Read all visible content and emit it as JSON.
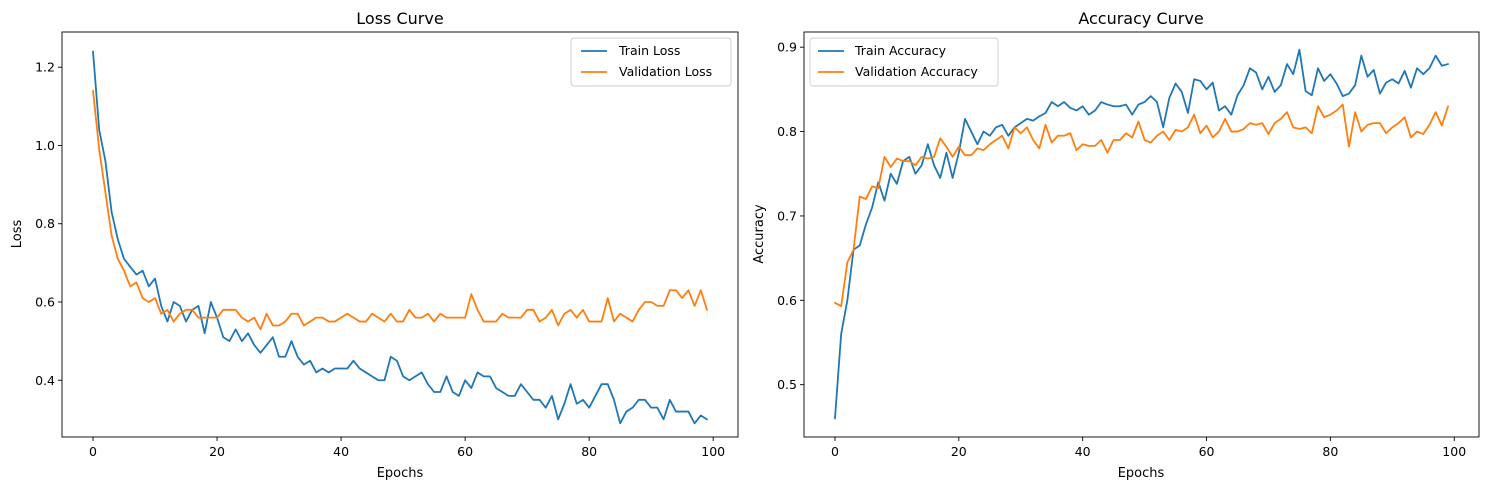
{
  "chart_data": [
    {
      "type": "line",
      "title": "Loss Curve",
      "xlabel": "Epochs",
      "ylabel": "Loss",
      "xlim": [
        -5,
        104
      ],
      "ylim": [
        0.255,
        1.29
      ],
      "xticks": [
        0,
        20,
        40,
        60,
        80,
        100
      ],
      "yticks": [
        0.4,
        0.6,
        0.8,
        1.0,
        1.2
      ],
      "legend": "top-right",
      "grid": false,
      "series": [
        {
          "name": "Train Loss",
          "color": "#1f77b4",
          "values": [
            1.24,
            1.04,
            0.96,
            0.83,
            0.76,
            0.71,
            0.69,
            0.67,
            0.68,
            0.64,
            0.66,
            0.59,
            0.55,
            0.6,
            0.59,
            0.55,
            0.58,
            0.59,
            0.52,
            0.6,
            0.56,
            0.51,
            0.5,
            0.53,
            0.5,
            0.52,
            0.49,
            0.47,
            0.49,
            0.51,
            0.46,
            0.46,
            0.5,
            0.46,
            0.44,
            0.45,
            0.42,
            0.43,
            0.42,
            0.43,
            0.43,
            0.43,
            0.45,
            0.43,
            0.42,
            0.41,
            0.4,
            0.4,
            0.46,
            0.45,
            0.41,
            0.4,
            0.41,
            0.42,
            0.39,
            0.37,
            0.37,
            0.41,
            0.37,
            0.36,
            0.4,
            0.38,
            0.42,
            0.41,
            0.41,
            0.38,
            0.37,
            0.36,
            0.36,
            0.39,
            0.37,
            0.35,
            0.35,
            0.33,
            0.36,
            0.3,
            0.34,
            0.39,
            0.34,
            0.35,
            0.33,
            0.36,
            0.39,
            0.39,
            0.35,
            0.29,
            0.32,
            0.33,
            0.35,
            0.35,
            0.33,
            0.33,
            0.3,
            0.35,
            0.32,
            0.32,
            0.32,
            0.29,
            0.31,
            0.3
          ]
        },
        {
          "name": "Validation Loss",
          "color": "#ff7f0e",
          "values": [
            1.14,
            0.99,
            0.88,
            0.77,
            0.71,
            0.68,
            0.64,
            0.65,
            0.61,
            0.6,
            0.61,
            0.57,
            0.58,
            0.55,
            0.57,
            0.58,
            0.58,
            0.56,
            0.56,
            0.56,
            0.56,
            0.58,
            0.58,
            0.58,
            0.56,
            0.55,
            0.56,
            0.53,
            0.57,
            0.54,
            0.54,
            0.55,
            0.57,
            0.57,
            0.54,
            0.55,
            0.56,
            0.56,
            0.55,
            0.55,
            0.56,
            0.57,
            0.56,
            0.55,
            0.55,
            0.57,
            0.56,
            0.55,
            0.57,
            0.55,
            0.55,
            0.58,
            0.56,
            0.56,
            0.57,
            0.55,
            0.57,
            0.56,
            0.56,
            0.56,
            0.56,
            0.62,
            0.58,
            0.55,
            0.55,
            0.55,
            0.57,
            0.56,
            0.56,
            0.56,
            0.58,
            0.58,
            0.55,
            0.56,
            0.58,
            0.54,
            0.57,
            0.58,
            0.56,
            0.58,
            0.55,
            0.55,
            0.55,
            0.61,
            0.55,
            0.57,
            0.56,
            0.55,
            0.58,
            0.6,
            0.6,
            0.59,
            0.59,
            0.63,
            0.63,
            0.61,
            0.63,
            0.59,
            0.63,
            0.58
          ]
        }
      ]
    },
    {
      "type": "line",
      "title": "Accuracy Curve",
      "xlabel": "Epochs",
      "ylabel": "Accuracy",
      "xlim": [
        -5,
        104
      ],
      "ylim": [
        0.438,
        0.918
      ],
      "xticks": [
        0,
        20,
        40,
        60,
        80,
        100
      ],
      "yticks": [
        0.5,
        0.6,
        0.7,
        0.8,
        0.9
      ],
      "legend": "top-left",
      "grid": false,
      "series": [
        {
          "name": "Train Accuracy",
          "color": "#1f77b4",
          "values": [
            0.46,
            0.56,
            0.6,
            0.66,
            0.665,
            0.69,
            0.71,
            0.74,
            0.718,
            0.75,
            0.738,
            0.765,
            0.77,
            0.75,
            0.76,
            0.785,
            0.76,
            0.745,
            0.775,
            0.745,
            0.775,
            0.815,
            0.8,
            0.785,
            0.8,
            0.795,
            0.805,
            0.808,
            0.795,
            0.805,
            0.81,
            0.815,
            0.813,
            0.818,
            0.822,
            0.835,
            0.83,
            0.835,
            0.828,
            0.825,
            0.83,
            0.82,
            0.825,
            0.835,
            0.832,
            0.83,
            0.83,
            0.832,
            0.82,
            0.832,
            0.835,
            0.842,
            0.835,
            0.805,
            0.84,
            0.857,
            0.847,
            0.822,
            0.862,
            0.86,
            0.85,
            0.858,
            0.825,
            0.83,
            0.82,
            0.843,
            0.855,
            0.875,
            0.87,
            0.85,
            0.865,
            0.847,
            0.855,
            0.88,
            0.868,
            0.897,
            0.848,
            0.843,
            0.875,
            0.86,
            0.868,
            0.857,
            0.842,
            0.845,
            0.855,
            0.89,
            0.865,
            0.873,
            0.845,
            0.858,
            0.862,
            0.857,
            0.872,
            0.852,
            0.875,
            0.868,
            0.875,
            0.89,
            0.878,
            0.88
          ]
        },
        {
          "name": "Validation Accuracy",
          "color": "#ff7f0e",
          "values": [
            0.597,
            0.593,
            0.645,
            0.66,
            0.723,
            0.72,
            0.735,
            0.733,
            0.77,
            0.758,
            0.768,
            0.765,
            0.765,
            0.76,
            0.77,
            0.768,
            0.77,
            0.792,
            0.782,
            0.77,
            0.782,
            0.772,
            0.772,
            0.78,
            0.778,
            0.785,
            0.79,
            0.795,
            0.78,
            0.805,
            0.798,
            0.805,
            0.79,
            0.78,
            0.808,
            0.787,
            0.795,
            0.795,
            0.798,
            0.778,
            0.785,
            0.783,
            0.783,
            0.79,
            0.775,
            0.79,
            0.79,
            0.798,
            0.793,
            0.812,
            0.79,
            0.787,
            0.795,
            0.8,
            0.79,
            0.802,
            0.8,
            0.805,
            0.82,
            0.798,
            0.807,
            0.793,
            0.8,
            0.815,
            0.8,
            0.8,
            0.803,
            0.81,
            0.808,
            0.81,
            0.797,
            0.81,
            0.815,
            0.823,
            0.805,
            0.803,
            0.805,
            0.798,
            0.83,
            0.817,
            0.82,
            0.825,
            0.832,
            0.782,
            0.823,
            0.8,
            0.808,
            0.81,
            0.81,
            0.798,
            0.805,
            0.81,
            0.817,
            0.793,
            0.8,
            0.797,
            0.808,
            0.823,
            0.807,
            0.83
          ]
        }
      ]
    }
  ]
}
